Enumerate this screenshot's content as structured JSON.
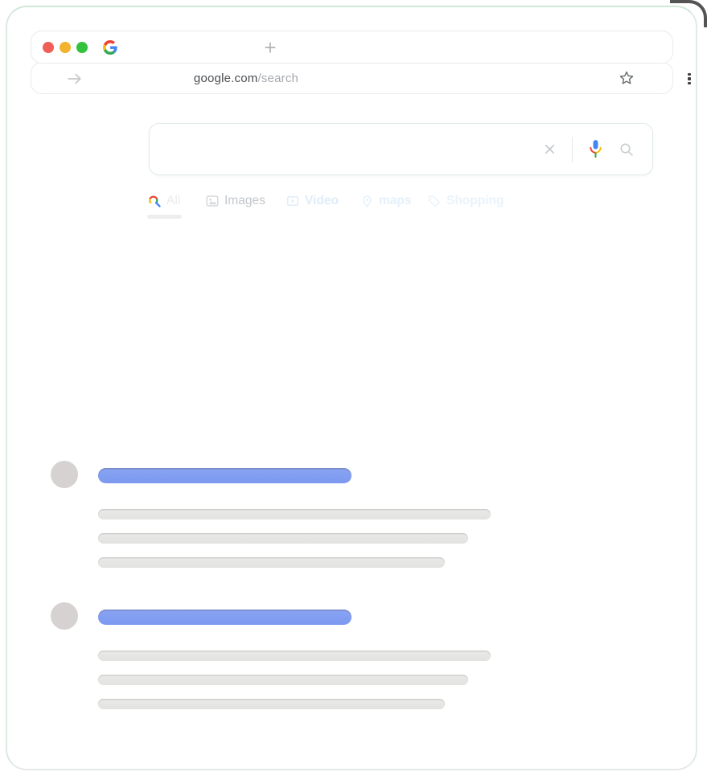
{
  "window": {
    "tabbar": {
      "new_tab_label": "+"
    },
    "addressbar": {
      "domain": "google.com",
      "path": "/search"
    }
  },
  "search": {
    "value": "",
    "placeholder": ""
  },
  "tabs": [
    {
      "label": "All",
      "active": true
    },
    {
      "label": "Images",
      "active": false
    },
    {
      "label": "Video",
      "active": false
    },
    {
      "label": "maps",
      "active": false
    },
    {
      "label": "Shopping",
      "active": false
    }
  ],
  "results": [
    {
      "type": "skeleton-result",
      "title_width": 315,
      "line_widths": [
        488,
        460,
        431
      ]
    },
    {
      "type": "skeleton-result",
      "title_width": 315,
      "line_widths": [
        488,
        460,
        431
      ]
    }
  ],
  "colors": {
    "accent_blue": "#7f9df1",
    "skeleton_gray": "#e6e6e4",
    "avatar_gray": "#d7d2d2",
    "frame_mint": "#d9ece0",
    "google_blue": "#4285f4",
    "google_red": "#ea4335",
    "google_yellow": "#fbbc05",
    "google_green": "#34a853"
  }
}
